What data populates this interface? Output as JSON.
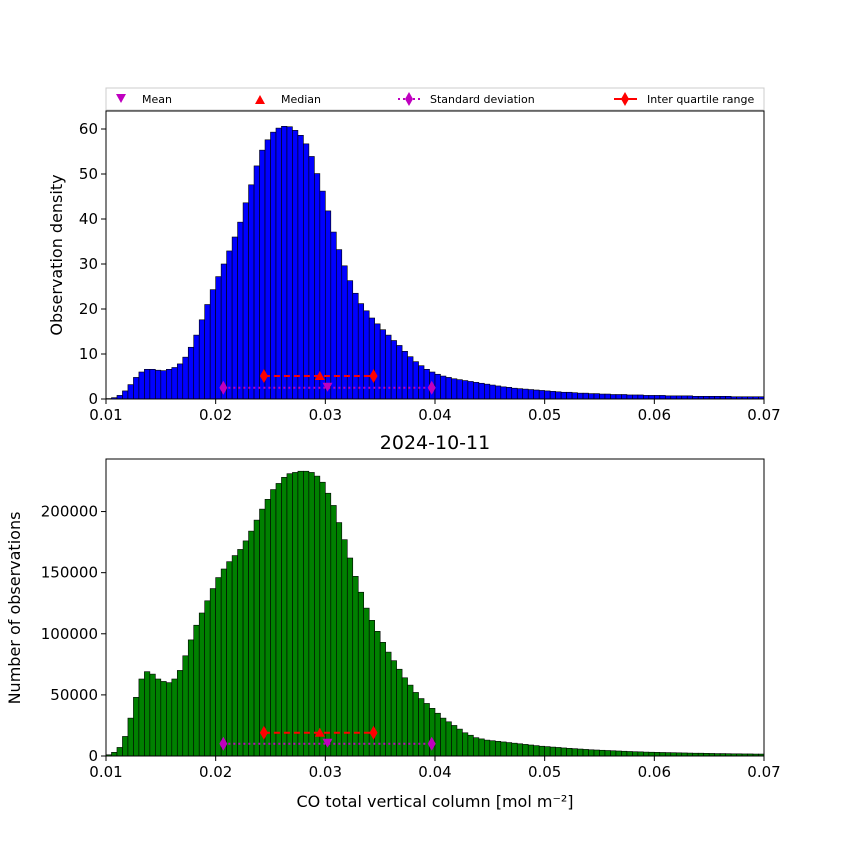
{
  "chart_data": [
    {
      "type": "bar",
      "panel": "top",
      "title": "",
      "xlabel": "",
      "ylabel": "Observation density",
      "xlim": [
        0.01,
        0.07
      ],
      "ylim": [
        0,
        64
      ],
      "xticks": [
        "0.01",
        "0.02",
        "0.03",
        "0.04",
        "0.05",
        "0.06",
        "0.07"
      ],
      "yticks": [
        "0",
        "10",
        "20",
        "30",
        "40",
        "50",
        "60"
      ],
      "bar_color": "#0000ff",
      "bin_start": 0.01,
      "bin_width": 0.0005,
      "values": [
        0.1,
        0.3,
        0.8,
        1.8,
        3.2,
        4.8,
        6.0,
        6.6,
        6.6,
        6.4,
        6.3,
        6.6,
        7.0,
        7.8,
        9.3,
        11.5,
        14.2,
        17.6,
        21.0,
        24.3,
        27.2,
        30.0,
        32.9,
        36.0,
        39.3,
        43.6,
        47.6,
        51.8,
        55.3,
        57.6,
        59.3,
        60.2,
        60.6,
        60.5,
        59.7,
        58.6,
        56.7,
        53.9,
        50.1,
        46.2,
        41.8,
        37.1,
        33.2,
        29.6,
        26.3,
        23.5,
        21.2,
        19.6,
        18.0,
        16.7,
        15.4,
        14.2,
        13.0,
        11.9,
        10.6,
        9.4,
        8.3,
        7.4,
        6.6,
        6.0,
        5.5,
        5.1,
        4.8,
        4.5,
        4.3,
        4.1,
        3.9,
        3.7,
        3.5,
        3.3,
        3.1,
        2.9,
        2.7,
        2.6,
        2.4,
        2.3,
        2.2,
        2.1,
        2.0,
        1.9,
        1.8,
        1.7,
        1.6,
        1.5,
        1.5,
        1.4,
        1.3,
        1.3,
        1.2,
        1.2,
        1.1,
        1.1,
        1.0,
        1.0,
        1.0,
        0.9,
        0.9,
        0.9,
        0.8,
        0.8,
        0.8,
        0.8,
        0.7,
        0.7,
        0.7,
        0.7,
        0.7,
        0.6,
        0.6,
        0.6,
        0.6,
        0.6,
        0.6,
        0.6,
        0.5,
        0.5,
        0.5,
        0.5,
        0.5,
        0.5
      ],
      "markers_y": 5.1,
      "sd_y": 2.5,
      "mean": 0.0302,
      "median": 0.0295,
      "std_range": [
        0.0207,
        0.0397
      ],
      "iqr_range": [
        0.0244,
        0.0344
      ]
    },
    {
      "type": "bar",
      "panel": "bottom",
      "title": "2024-10-11",
      "xlabel": "CO total vertical column [mol m⁻²]",
      "ylabel": "Number of observations",
      "xlim": [
        0.01,
        0.07
      ],
      "ylim": [
        0,
        243000
      ],
      "xticks": [
        "0.01",
        "0.02",
        "0.03",
        "0.04",
        "0.05",
        "0.06",
        "0.07"
      ],
      "yticks": [
        "0",
        "50000",
        "100000",
        "150000",
        "200000"
      ],
      "bar_color": "#008000",
      "bin_start": 0.01,
      "bin_width": 0.0005,
      "values": [
        1000,
        3000,
        7000,
        16000,
        31000,
        48000,
        63000,
        69000,
        67000,
        63000,
        61000,
        60000,
        63000,
        70000,
        82000,
        95000,
        107000,
        117000,
        127000,
        137000,
        146000,
        153000,
        159000,
        164000,
        169000,
        176000,
        184000,
        193000,
        202000,
        210000,
        218000,
        223000,
        228000,
        231000,
        232000,
        233000,
        233000,
        232000,
        229000,
        224000,
        215000,
        205000,
        191000,
        177000,
        162000,
        147000,
        134000,
        121000,
        111000,
        102000,
        93000,
        85000,
        78000,
        71000,
        64000,
        58000,
        52000,
        47000,
        43000,
        39000,
        35000,
        31000,
        28000,
        25000,
        22000,
        19000,
        17000,
        15000,
        14000,
        13000,
        12500,
        12000,
        11500,
        11000,
        10500,
        10000,
        9500,
        9000,
        8500,
        8000,
        7700,
        7300,
        7000,
        6600,
        6300,
        6000,
        5700,
        5400,
        5100,
        4900,
        4700,
        4500,
        4300,
        4100,
        3900,
        3700,
        3500,
        3400,
        3200,
        3100,
        3000,
        2900,
        2800,
        2700,
        2600,
        2500,
        2400,
        2300,
        2300,
        2200,
        2100,
        2000,
        2000,
        1900,
        1800,
        1800,
        1700,
        1700,
        1600,
        1600
      ],
      "markers_y": 19000,
      "sd_y": 10000,
      "mean": 0.0302,
      "median": 0.0295,
      "std_range": [
        0.0207,
        0.0397
      ],
      "iqr_range": [
        0.0244,
        0.0344
      ]
    }
  ],
  "legend": {
    "items": [
      {
        "label": "Mean",
        "color": "#bf00bf",
        "symbol": "triangle-down"
      },
      {
        "label": "Median",
        "color": "#ff0000",
        "symbol": "triangle-up"
      },
      {
        "label": "Standard deviation",
        "color": "#bf00bf",
        "symbol": "diamond-dotted"
      },
      {
        "label": "Inter quartile range",
        "color": "#ff0000",
        "symbol": "diamond-line"
      }
    ]
  },
  "colors": {
    "mean": "#bf00bf",
    "median": "#ff0000",
    "std": "#bf00bf",
    "iqr": "#ff0000"
  }
}
